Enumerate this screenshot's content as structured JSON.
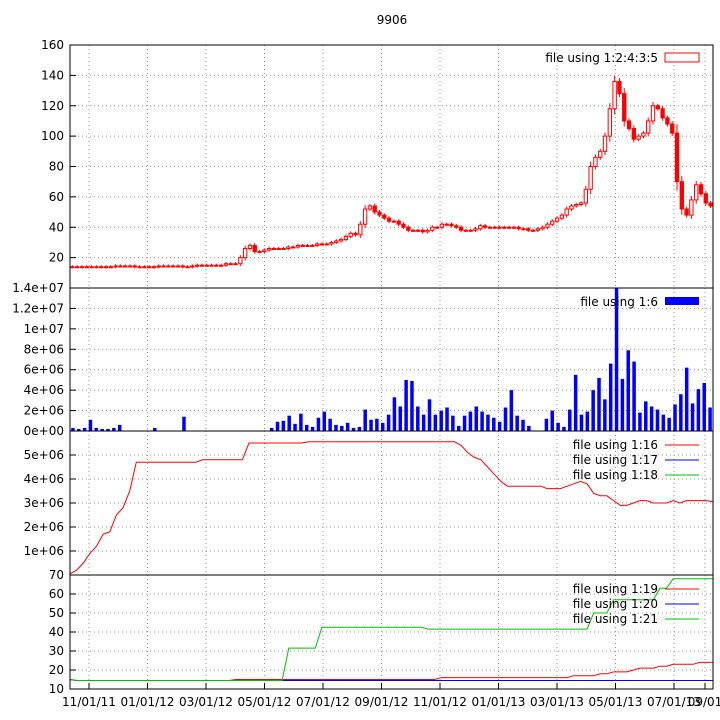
{
  "chart_data": {
    "title": "9906",
    "x_ticks": [
      "11/01/11",
      "01/01/12",
      "03/01/12",
      "05/01/12",
      "07/01/12",
      "09/01/12",
      "11/01/12",
      "01/01/13",
      "03/01/13",
      "05/01/13",
      "07/01/13",
      "09/01"
    ],
    "panels": [
      {
        "type": "candlestick",
        "ylim": [
          0,
          160
        ],
        "y_ticks": [
          "20",
          "40",
          "60",
          "80",
          "100",
          "120",
          "140",
          "160"
        ],
        "legend": "file using 1:2:4:3:5",
        "color": "#ff0000",
        "close": [
          14,
          14,
          14,
          14,
          14,
          14,
          14,
          14,
          14,
          14.5,
          14.5,
          14.5,
          14.5,
          14,
          14,
          14,
          14,
          14,
          14.5,
          14.5,
          14.5,
          14.5,
          14.5,
          14,
          14,
          14.5,
          15,
          15,
          15,
          15,
          15,
          15,
          16,
          16,
          16,
          20,
          26,
          28,
          24,
          24,
          25,
          26,
          26,
          26,
          26,
          27,
          27,
          28,
          28,
          28,
          28,
          29,
          29,
          29,
          30,
          31,
          32,
          34,
          36,
          35,
          42,
          52,
          54,
          50,
          48,
          46,
          44,
          44,
          42,
          40,
          38,
          38,
          38,
          37,
          38,
          40,
          40,
          42,
          42,
          41,
          40,
          38,
          38,
          38,
          39,
          41,
          40,
          40,
          40,
          40,
          40,
          40,
          40,
          39,
          39,
          38,
          38,
          39,
          40,
          42,
          44,
          46,
          48,
          52,
          54,
          55,
          56,
          65,
          80,
          86,
          90,
          100,
          118,
          136,
          128,
          110,
          105,
          98,
          100,
          102,
          110,
          120,
          118,
          112,
          108,
          102,
          70,
          52,
          48,
          58,
          68,
          62,
          56,
          54
        ],
        "wick_top_extra": 6,
        "wick_bot_extra": 6
      },
      {
        "type": "bar",
        "ylim": [
          0,
          14000000
        ],
        "y_ticks": [
          "0e+00",
          "2e+06",
          "4e+06",
          "6e+06",
          "8e+06",
          "1e+07",
          "1.2e+07",
          "1.4e+07"
        ],
        "legend": "file using 1:6",
        "color": "#0000ff",
        "values": [
          300000,
          200000,
          300000,
          1100000,
          300000,
          200000,
          200000,
          300000,
          600000,
          0,
          0,
          0,
          0,
          0,
          300000,
          0,
          0,
          0,
          0,
          1400000,
          0,
          0,
          0,
          0,
          0,
          0,
          0,
          0,
          0,
          0,
          0,
          0,
          0,
          0,
          300000,
          900000,
          1000000,
          1500000,
          700000,
          1700000,
          600000,
          400000,
          1300000,
          1900000,
          1200000,
          600000,
          500000,
          800000,
          300000,
          400000,
          2100000,
          1100000,
          1200000,
          800000,
          1600000,
          3300000,
          2400000,
          5000000,
          4900000,
          2400000,
          1600000,
          3100000,
          1600000,
          2000000,
          2300000,
          1500000,
          500000,
          1500000,
          1900000,
          2400000,
          1900000,
          1600000,
          1300000,
          900000,
          2300000,
          4000000,
          1500000,
          1100000,
          500000,
          0,
          0,
          1200000,
          2000000,
          800000,
          400000,
          2100000,
          5500000,
          1600000,
          1900000,
          4000000,
          5200000,
          3100000,
          6600000,
          14000000,
          5100000,
          7900000,
          6800000,
          1800000,
          2900000,
          2400000,
          2100000,
          1600000,
          1300000,
          2600000,
          3600000,
          6200000,
          2700000,
          4100000,
          4700000,
          2300000
        ]
      },
      {
        "type": "line",
        "ylim": [
          0,
          6000000
        ],
        "y_ticks": [
          "1e+06",
          "2e+06",
          "3e+06",
          "4e+06",
          "5e+06"
        ],
        "legends": [
          "file using 1:16",
          "file using 1:17",
          "file using 1:18"
        ],
        "colors": [
          "#ff0000",
          "#0000ff",
          "#00c000"
        ],
        "series": [
          [
            50000,
            200000,
            500000,
            900000,
            1200000,
            1700000,
            1800000,
            2500000,
            2800000,
            3500000,
            4700000,
            4700000,
            4700000,
            4700000,
            4700000,
            4700000,
            4700000,
            4700000,
            4700000,
            4700000,
            4800000,
            4800000,
            4800000,
            4800000,
            4800000,
            4800000,
            4800000,
            5500000,
            5500000,
            5500000,
            5500000,
            5500000,
            5500000,
            5500000,
            5500000,
            5500000,
            5550000,
            5550000,
            5550000,
            5550000,
            5550000,
            5550000,
            5550000,
            5550000,
            5550000,
            5550000,
            5550000,
            5550000,
            5550000,
            5550000,
            5550000,
            5550000,
            5550000,
            5550000,
            5550000,
            5550000,
            5550000,
            5550000,
            5550000,
            5400000,
            5100000,
            4900000,
            4800000,
            4500000,
            4200000,
            3900000,
            3700000,
            3700000,
            3700000,
            3700000,
            3700000,
            3700000,
            3600000,
            3600000,
            3600000,
            3700000,
            3800000,
            3900000,
            3800000,
            3400000,
            3300000,
            3300000,
            3100000,
            2900000,
            2900000,
            3000000,
            3100000,
            3100000,
            3000000,
            3000000,
            3000000,
            3100000,
            3000000,
            3100000,
            3100000,
            3100000,
            3100000,
            3050000
          ]
        ]
      },
      {
        "type": "line",
        "ylim": [
          10,
          70
        ],
        "y_ticks": [
          "10",
          "20",
          "30",
          "40",
          "50",
          "60",
          "70"
        ],
        "legends": [
          "file using 1:19",
          "file using 1:20",
          "file using 1:21"
        ],
        "colors": [
          "#ff0000",
          "#0000ff",
          "#00c000"
        ],
        "series": [
          [
            15,
            14.5,
            14.5,
            14.5,
            14.5,
            14.5,
            14.5,
            14.5,
            14.5,
            14.5,
            14.5,
            14.5,
            14.5,
            14.5,
            14.5,
            14.5,
            14.5,
            14.5,
            14.5,
            14.5,
            14.5,
            14.5,
            14.5,
            14.5,
            14.5,
            15,
            15,
            15,
            15,
            15,
            15,
            15,
            15,
            15,
            15,
            15,
            15,
            15,
            15,
            15,
            15,
            15,
            15,
            15,
            15,
            15,
            15,
            15,
            15,
            15,
            15,
            15,
            15,
            15,
            15,
            15,
            16,
            16,
            16,
            16,
            16,
            16,
            16,
            16,
            16,
            16,
            16,
            16,
            16,
            16,
            16,
            16,
            16,
            16,
            16,
            16,
            17,
            17,
            17,
            17,
            18,
            18,
            19,
            19,
            19,
            20,
            21,
            21,
            21,
            22,
            22,
            23,
            23,
            23,
            23,
            24,
            24,
            24
          ],
          [
            15,
            14.5,
            14.5,
            14.5,
            14.5,
            14.5,
            14.5,
            14.5,
            14.5,
            14.5,
            14.5,
            14.5,
            14.5,
            14.5,
            14.5,
            14.5,
            14.5,
            14.5,
            14.5,
            14.5,
            14.5,
            14.5,
            14.5,
            14.5,
            14.5,
            14.5,
            14.5,
            14.5,
            14.5,
            14.5,
            14.5,
            14.5,
            14.5,
            14.5,
            14.5,
            14.5,
            14.5,
            14.5,
            14.5,
            14.5,
            14.5,
            14.5,
            14.5,
            14.5,
            14.5,
            14.5,
            14.5,
            14.5,
            14.5,
            14.5,
            14.5,
            14.5,
            14.5,
            14.5,
            14.5,
            14.5,
            14.5,
            14.5,
            14.5,
            14.5,
            14.5,
            14.5,
            14.5,
            14.5,
            14.5,
            14.5,
            14.5,
            14.5,
            14.5,
            14.5,
            14.5,
            14.5,
            14.5,
            14.5,
            14.5,
            14.5,
            14.5,
            14.5,
            14.5,
            14.5,
            14.5,
            14.5,
            14.5,
            14.5,
            14.5,
            14.5,
            14.5,
            14.5,
            14.5,
            14.5,
            14.5,
            14.5,
            14.5,
            14.5,
            14.5,
            14.5,
            14.5,
            14.5
          ],
          [
            15,
            14.5,
            14.5,
            14.5,
            14.5,
            14.5,
            14.5,
            14.5,
            14.5,
            14.5,
            14.5,
            14.5,
            14.5,
            14.5,
            14.5,
            14.5,
            14.5,
            14.5,
            14.5,
            14.5,
            14.5,
            14.5,
            14.5,
            14.5,
            14.5,
            14.5,
            14.5,
            14.5,
            14.5,
            14.5,
            14.5,
            14.5,
            14.5,
            31.5,
            31.5,
            31.5,
            31.5,
            31.5,
            42.5,
            42.5,
            42.5,
            42.5,
            42.5,
            42.5,
            42.5,
            42.5,
            42.5,
            42.5,
            42.5,
            42.5,
            42.5,
            42.5,
            42.5,
            42.5,
            41.5,
            41.5,
            41.5,
            41.5,
            41.5,
            41.5,
            41.5,
            41.5,
            41.5,
            41.5,
            41.5,
            41.5,
            41.5,
            41.5,
            41.5,
            41.5,
            41.5,
            41.5,
            41.5,
            41.5,
            41.5,
            41.5,
            41.5,
            41.5,
            41.5,
            50,
            50,
            50,
            57,
            57,
            57,
            57,
            57,
            57,
            57,
            63,
            63,
            68,
            68,
            68,
            68,
            68,
            68,
            68
          ]
        ]
      }
    ]
  }
}
